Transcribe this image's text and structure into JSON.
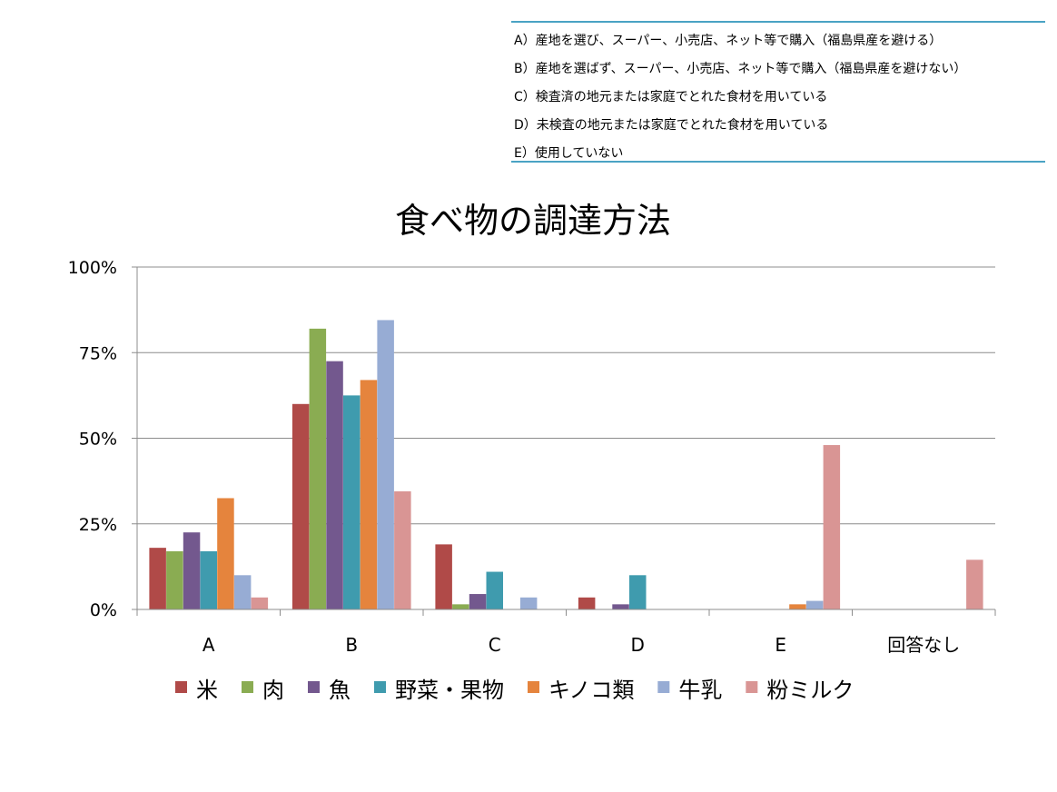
{
  "definitions": [
    "A）産地を選び、スーパー、小売店、ネット等で購入（福島県産を避ける）",
    "B）産地を選ばず、スーパー、小売店、ネット等で購入（福島県産を避けない）",
    "C）検査済の地元または家庭でとれた食材を用いている",
    "D）未検査の地元または家庭でとれた食材を用いている",
    "E）使用していない"
  ],
  "chart_data": {
    "type": "bar",
    "title": "食べ物の調達方法",
    "xlabel": "",
    "ylabel": "",
    "ylim": [
      0,
      100
    ],
    "yticks": [
      0,
      25,
      50,
      75,
      100
    ],
    "ytick_labels": [
      "0%",
      "25%",
      "50%",
      "75%",
      "100%"
    ],
    "grid": true,
    "legend_position": "bottom",
    "categories": [
      "A",
      "B",
      "C",
      "D",
      "E",
      "回答なし"
    ],
    "series": [
      {
        "name": "米",
        "color": "#b04a48",
        "values": [
          18,
          60,
          19,
          3.5,
          0,
          0
        ]
      },
      {
        "name": "肉",
        "color": "#8aac52",
        "values": [
          17,
          82,
          1.5,
          0,
          0,
          0
        ]
      },
      {
        "name": "魚",
        "color": "#73588e",
        "values": [
          22.5,
          72.5,
          4.5,
          1.5,
          0,
          0
        ]
      },
      {
        "name": "野菜・果物",
        "color": "#3f9bae",
        "values": [
          17,
          62.5,
          11,
          10,
          0,
          0
        ]
      },
      {
        "name": "キノコ類",
        "color": "#e5843d",
        "values": [
          32.5,
          67,
          0,
          0,
          1.5,
          0
        ]
      },
      {
        "name": "牛乳",
        "color": "#97acd4",
        "values": [
          10,
          84.5,
          3.5,
          0,
          2.5,
          0
        ]
      },
      {
        "name": "粉ミルク",
        "color": "#d99594",
        "values": [
          3.5,
          34.5,
          0,
          0,
          48,
          14.5
        ]
      }
    ]
  }
}
